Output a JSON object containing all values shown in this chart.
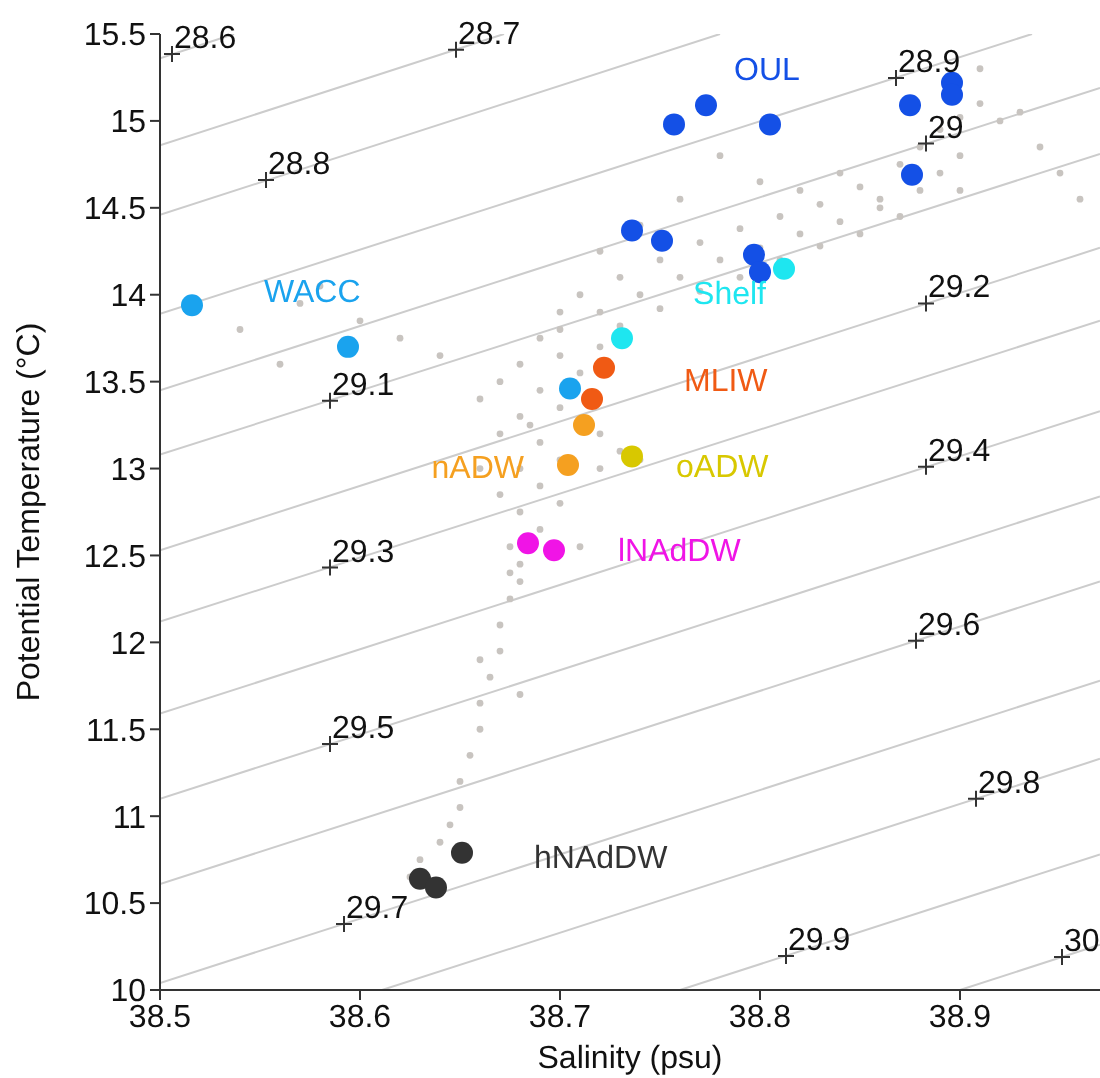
{
  "chart_data": {
    "type": "scatter",
    "xlabel": "Salinity (psu)",
    "ylabel": "Potential Temperature (°C)",
    "xlim": [
      38.5,
      38.97
    ],
    "ylim": [
      10,
      15.5
    ],
    "xticks": [
      38.5,
      38.6,
      38.7,
      38.8,
      38.9
    ],
    "yticks": [
      10,
      10.5,
      11,
      11.5,
      12,
      12.5,
      13,
      13.5,
      14,
      14.5,
      15,
      15.5
    ],
    "marker": "circle",
    "series": [
      {
        "type": "line",
        "color": "#cccccc",
        "marker": "none",
        "line_style": "solid",
        "x": [
          38.5,
          38.537
        ],
        "values": [
          15.36,
          15.5
        ]
      },
      {
        "type": "line",
        "color": "#cccccc",
        "marker": "none",
        "line_style": "solid",
        "x": [
          38.5,
          38.672
        ],
        "values": [
          14.86,
          15.5
        ]
      },
      {
        "type": "line",
        "color": "#cccccc",
        "marker": "none",
        "line_style": "solid",
        "x": [
          38.5,
          38.78
        ],
        "values": [
          14.46,
          15.5
        ]
      },
      {
        "type": "line",
        "color": "#cccccc",
        "marker": "none",
        "line_style": "solid",
        "x": [
          38.5,
          38.936
        ],
        "values": [
          13.89,
          15.5
        ]
      },
      {
        "type": "line",
        "color": "#cccccc",
        "marker": "none",
        "line_style": "solid",
        "x": [
          38.5,
          38.97
        ],
        "values": [
          13.45,
          15.19
        ]
      },
      {
        "type": "line",
        "color": "#cccccc",
        "marker": "none",
        "line_style": "solid",
        "x": [
          38.5,
          38.97
        ],
        "values": [
          13.08,
          14.81
        ]
      },
      {
        "type": "line",
        "color": "#cccccc",
        "marker": "none",
        "line_style": "solid",
        "x": [
          38.5,
          38.97
        ],
        "values": [
          12.53,
          14.27
        ]
      },
      {
        "type": "line",
        "color": "#cccccc",
        "marker": "none",
        "line_style": "solid",
        "x": [
          38.5,
          38.97
        ],
        "values": [
          12.12,
          13.85
        ]
      },
      {
        "type": "line",
        "color": "#cccccc",
        "marker": "none",
        "line_style": "solid",
        "x": [
          38.5,
          38.97
        ],
        "values": [
          11.59,
          13.33
        ]
      },
      {
        "type": "line",
        "color": "#cccccc",
        "marker": "none",
        "line_style": "solid",
        "x": [
          38.5,
          38.97
        ],
        "values": [
          11.1,
          12.84
        ]
      },
      {
        "type": "line",
        "color": "#cccccc",
        "marker": "none",
        "line_style": "solid",
        "x": [
          38.5,
          38.97
        ],
        "values": [
          10.61,
          12.35
        ]
      },
      {
        "type": "line",
        "color": "#cccccc",
        "marker": "none",
        "line_style": "solid",
        "x": [
          38.5,
          38.97
        ],
        "values": [
          10.04,
          11.78
        ]
      },
      {
        "type": "line",
        "color": "#cccccc",
        "marker": "none",
        "line_style": "solid",
        "x": [
          38.611,
          38.97
        ],
        "values": [
          10,
          11.33
        ]
      },
      {
        "type": "line",
        "color": "#cccccc",
        "marker": "none",
        "line_style": "solid",
        "x": [
          38.76,
          38.97
        ],
        "values": [
          10,
          10.78
        ]
      },
      {
        "type": "line",
        "color": "#cccccc",
        "marker": "none",
        "line_style": "solid",
        "x": [
          38.9,
          38.97
        ],
        "values": [
          10,
          10.26
        ]
      },
      {
        "color": "#c8c4c0",
        "x": [
          38.91,
          38.9,
          38.89,
          38.88,
          38.9,
          38.87,
          38.89,
          38.88,
          38.86,
          38.9,
          38.91,
          38.92,
          38.85,
          38.83,
          38.81,
          38.79,
          38.77,
          38.75,
          38.73,
          38.71,
          38.7,
          38.87,
          38.85,
          38.83,
          38.81,
          38.79,
          38.77,
          38.75,
          38.73,
          38.72,
          38.86,
          38.84,
          38.82,
          38.8,
          38.78,
          38.76,
          38.74,
          38.72,
          38.7,
          38.74,
          38.76,
          38.72,
          38.8,
          38.78,
          38.84,
          38.82,
          38.69,
          38.7,
          38.68,
          38.71,
          38.69,
          38.7,
          38.68,
          38.685,
          38.69,
          38.7,
          38.68,
          38.69,
          38.7,
          38.68,
          38.69,
          38.71,
          38.68,
          38.72,
          38.73,
          38.74,
          38.72,
          38.67,
          38.66,
          38.67,
          38.66,
          38.67,
          38.675,
          38.68,
          38.675,
          38.67,
          38.67,
          38.665,
          38.66,
          38.66,
          38.655,
          38.65,
          38.65,
          38.645,
          38.64,
          38.63,
          38.625,
          38.66,
          38.68,
          38.675,
          38.57,
          38.6,
          38.62,
          38.64,
          38.58,
          38.54,
          38.56,
          38.93,
          38.94,
          38.95,
          38.96
        ],
        "values": [
          15.3,
          15.02,
          14.95,
          14.85,
          14.8,
          14.75,
          14.7,
          14.6,
          14.55,
          14.6,
          15.1,
          15.0,
          14.62,
          14.52,
          14.45,
          14.38,
          14.3,
          14.2,
          14.1,
          14.0,
          13.9,
          14.45,
          14.35,
          14.28,
          14.2,
          14.1,
          14.02,
          13.92,
          13.82,
          13.7,
          14.5,
          14.42,
          14.35,
          14.27,
          14.2,
          14.1,
          14.0,
          13.9,
          13.8,
          14.4,
          14.55,
          14.25,
          14.65,
          14.8,
          14.7,
          14.6,
          13.75,
          13.65,
          13.6,
          13.55,
          13.45,
          13.35,
          13.3,
          13.25,
          13.15,
          13.05,
          13.0,
          12.9,
          12.8,
          12.75,
          12.65,
          12.55,
          12.45,
          13.2,
          13.1,
          13.05,
          13.0,
          13.5,
          13.4,
          13.2,
          13.0,
          12.85,
          12.55,
          12.35,
          12.25,
          12.1,
          11.95,
          11.8,
          11.65,
          11.5,
          11.35,
          11.2,
          11.05,
          10.95,
          10.85,
          10.75,
          10.65,
          11.9,
          11.7,
          12.4,
          13.95,
          13.85,
          13.75,
          13.65,
          14.05,
          13.8,
          13.6,
          15.05,
          14.85,
          14.7,
          14.55
        ]
      },
      {
        "name": "OUL",
        "color": "#1450e6",
        "x": [
          38.896,
          38.896,
          38.875,
          38.773,
          38.757,
          38.805,
          38.876,
          38.736,
          38.751,
          38.797,
          38.8
        ],
        "values": [
          15.22,
          15.15,
          15.09,
          15.09,
          14.98,
          14.98,
          14.69,
          14.37,
          14.31,
          14.23,
          14.13
        ]
      },
      {
        "name": "WACC",
        "color": "#1aa3ee",
        "x": [
          38.516,
          38.594,
          38.705
        ],
        "values": [
          13.94,
          13.7,
          13.46
        ]
      },
      {
        "name": "Shelf",
        "color": "#1ee6f0",
        "x": [
          38.812,
          38.731
        ],
        "values": [
          14.15,
          13.75
        ]
      },
      {
        "name": "MLIW",
        "color": "#f05a14",
        "x": [
          38.722,
          38.716
        ],
        "values": [
          13.58,
          13.4
        ]
      },
      {
        "name": "nADW",
        "color": "#f5a020",
        "x": [
          38.712,
          38.704
        ],
        "values": [
          13.25,
          13.02
        ]
      },
      {
        "name": "oADW",
        "color": "#d8c800",
        "x": [
          38.736
        ],
        "values": [
          13.07
        ]
      },
      {
        "name": "lNAdDW",
        "color": "#f014e6",
        "x": [
          38.684,
          38.697
        ],
        "values": [
          12.57,
          12.53
        ]
      },
      {
        "name": "hNAdDW",
        "color": "#333333",
        "x": [
          38.651,
          38.63,
          38.638
        ],
        "values": [
          10.79,
          10.64,
          10.59
        ]
      }
    ],
    "annotations": [
      {
        "text": "28.6",
        "x": 38.506,
        "y": 15.385
      },
      {
        "text": "28.7",
        "x": 38.648,
        "y": 15.41
      },
      {
        "text": "28.8",
        "x": 38.553,
        "y": 14.66
      },
      {
        "text": "28.9",
        "x": 38.868,
        "y": 15.247
      },
      {
        "text": "29",
        "x": 38.883,
        "y": 14.87
      },
      {
        "text": "29.1",
        "x": 38.585,
        "y": 13.39
      },
      {
        "text": "29.2",
        "x": 38.883,
        "y": 13.95
      },
      {
        "text": "29.3",
        "x": 38.585,
        "y": 12.43
      },
      {
        "text": "29.4",
        "x": 38.883,
        "y": 13.01
      },
      {
        "text": "29.5",
        "x": 38.585,
        "y": 11.415
      },
      {
        "text": "29.6",
        "x": 38.878,
        "y": 12.01
      },
      {
        "text": "29.7",
        "x": 38.592,
        "y": 10.38
      },
      {
        "text": "29.8",
        "x": 38.908,
        "y": 11.1
      },
      {
        "text": "29.9",
        "x": 38.813,
        "y": 10.195
      },
      {
        "text": "30",
        "x": 38.951,
        "y": 10.19
      }
    ]
  }
}
